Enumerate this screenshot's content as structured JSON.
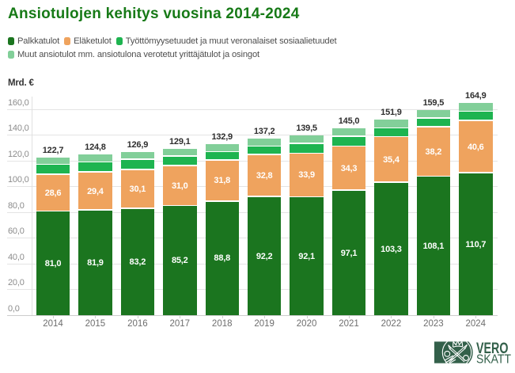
{
  "title": "Ansiotulojen kehitys vuosina 2014-2024",
  "y_axis_title": "Mrd. €",
  "colors": {
    "palkkatulot": "#1b751f",
    "elaketulot": "#efa35e",
    "tyottomyysetuudet": "#1eb450",
    "muut_ansiotulot": "#82cf99",
    "title_green": "#177a17",
    "logo_green": "#33604a",
    "grid": "#e4e4e4",
    "baseline": "#cccccc",
    "total_label": "#2e2e2e",
    "segment_label": "#ffffff",
    "axis_text": "#8c8c8c"
  },
  "legend": {
    "rows": [
      [
        {
          "label": "Palkkatulot",
          "color_key": "palkkatulot"
        },
        {
          "label": "Eläketulot",
          "color_key": "elaketulot"
        },
        {
          "label": "Työttömyysetuudet ja muut veronalaiset sosiaalietuudet",
          "color_key": "tyottomyysetuudet"
        }
      ],
      [
        {
          "label": "Muut ansiotulot mm. ansiotulona verotetut yrittäjätulot ja osingot",
          "color_key": "muut_ansiotulot"
        }
      ]
    ]
  },
  "chart_data": {
    "type": "bar",
    "stacked": true,
    "title": "Ansiotulojen kehitys vuosina 2014-2024",
    "ylabel": "Mrd. €",
    "ylim": [
      0,
      170
    ],
    "grid": "horizontal",
    "legend_position": "top",
    "decimal_separator": ",",
    "categories": [
      "2014",
      "2015",
      "2016",
      "2017",
      "2018",
      "2019",
      "2020",
      "2021",
      "2022",
      "2023",
      "2024"
    ],
    "y_ticks": [
      0,
      20,
      40,
      60,
      80,
      100,
      120,
      140,
      160
    ],
    "y_tick_labels": [
      "0,0",
      "20,0",
      "40,0",
      "60,0",
      "80,0",
      "100,0",
      "120,0",
      "140,0",
      "160,0"
    ],
    "series": [
      {
        "name": "Palkkatulot",
        "color_key": "palkkatulot",
        "values": [
          81.0,
          81.9,
          83.2,
          85.2,
          88.8,
          92.2,
          92.1,
          97.1,
          103.3,
          108.1,
          110.7
        ],
        "labels": [
          "81,0",
          "81,9",
          "83,2",
          "85,2",
          "88,8",
          "92,2",
          "92,1",
          "97,1",
          "103,3",
          "108,1",
          "110,7"
        ],
        "labels_visible": true
      },
      {
        "name": "Eläketulot",
        "color_key": "elaketulot",
        "values": [
          28.6,
          29.4,
          30.1,
          31.0,
          31.8,
          32.8,
          33.9,
          34.3,
          35.4,
          38.2,
          40.6
        ],
        "labels": [
          "28,6",
          "29,4",
          "30,1",
          "31,0",
          "31,8",
          "32,8",
          "33,9",
          "34,3",
          "35,4",
          "38,2",
          "40,6"
        ],
        "labels_visible": true
      },
      {
        "name": "Työttömyysetuudet ja muut veronalaiset sosiaalietuudet",
        "color_key": "tyottomyysetuudet",
        "values": [
          7.7,
          7.8,
          8.0,
          7.3,
          6.5,
          6.5,
          7.7,
          7.6,
          6.8,
          6.9,
          7.3
        ],
        "labels_visible": false,
        "values_estimated_from_pixels": true
      },
      {
        "name": "Muut ansiotulot mm. ansiotulona verotetut yrittäjätulot ja osingot",
        "color_key": "muut_ansiotulot",
        "values": [
          5.4,
          5.7,
          5.6,
          5.6,
          5.8,
          5.7,
          5.8,
          6.0,
          6.4,
          6.3,
          6.3
        ],
        "labels_visible": false,
        "values_estimated_from_pixels": true
      }
    ],
    "totals": [
      122.7,
      124.8,
      126.9,
      129.1,
      132.9,
      137.2,
      139.5,
      145.0,
      151.9,
      159.5,
      164.9
    ],
    "total_labels": [
      "122,7",
      "124,8",
      "126,9",
      "129,1",
      "132,9",
      "137,2",
      "139,5",
      "145,0",
      "151,9",
      "159,5",
      "164,9"
    ]
  },
  "logo": {
    "line1": "VERO",
    "line2": "SKATT"
  }
}
